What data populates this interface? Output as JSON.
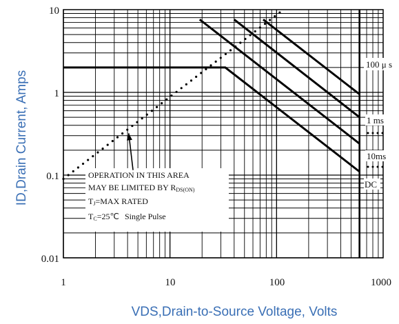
{
  "chart_data": {
    "type": "line",
    "title": "",
    "xlabel": "VDS,Drain-to-Source Voltage, Volts",
    "ylabel": "ID,Drain Current, Amps",
    "xscale": "log",
    "yscale": "log",
    "xlim": [
      1,
      1000
    ],
    "ylim": [
      0.01,
      10
    ],
    "grid": true,
    "x_ticks": [
      "1",
      "10",
      "100",
      "1000"
    ],
    "y_ticks": [
      "10",
      "1",
      "0.1",
      "0.01"
    ],
    "series": [
      {
        "name": "100 μ s",
        "points": [
          [
            75,
            7.6
          ],
          [
            600,
            0.95
          ]
        ]
      },
      {
        "name": "1 ms",
        "points": [
          [
            40,
            7.6
          ],
          [
            600,
            0.5
          ]
        ]
      },
      {
        "name": "10ms",
        "points": [
          [
            19,
            7.6
          ],
          [
            600,
            0.24
          ]
        ]
      },
      {
        "name": "DC",
        "points": [
          [
            1,
            2.0
          ],
          [
            33,
            2.0
          ],
          [
            600,
            0.11
          ]
        ]
      }
    ],
    "limit_line": {
      "points": [
        [
          1,
          0.09
        ],
        [
          110,
          9.5
        ]
      ],
      "style": "dotted"
    },
    "vertical_limit": 600,
    "annotation": {
      "lines": [
        "OPERATION IN THIS AREA",
        "MAY BE LIMITED BY R",
        "T",
        "T",
        "Single Pulse"
      ],
      "rds_sub": "DS(ON)",
      "tj_sub": "J",
      "tj_rest": "=MAX RATED",
      "tc_sub": "C",
      "tc_rest": "=25℃",
      "arrow_from": [
        4.5,
        0.115
      ],
      "arrow_to": [
        4.1,
        0.32
      ]
    }
  }
}
